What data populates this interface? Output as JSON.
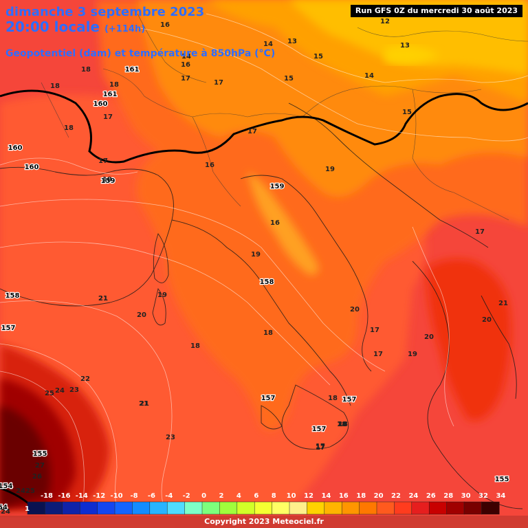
{
  "header": {
    "date": "dimanche 3 septembre 2023",
    "time": "20:00 locale",
    "offset": "(+114h)",
    "subtitle": "Geopotentiel (dam) et température à 850hPa (°C)",
    "run": "Run GFS 0Z du mercredi 30 août 2023"
  },
  "footer": {
    "copyright": "Copyright 2023 Meteociel.fr"
  },
  "colors": {
    "title": "#2E6DFF",
    "deep_red": "#5A0000",
    "orange": "#FF7F00",
    "yellow": "#FFC800"
  },
  "legend": {
    "values": [
      "-18",
      "-16",
      "-14",
      "-12",
      "-10",
      "-8",
      "-6",
      "-4",
      "-2",
      "0",
      "2",
      "4",
      "6",
      "8",
      "10",
      "12",
      "14",
      "16",
      "18",
      "20",
      "22",
      "24",
      "26",
      "28",
      "30",
      "32",
      "34"
    ],
    "colors": [
      "#0A1250",
      "#0C1C78",
      "#0F23A8",
      "#0F2DD0",
      "#1446F0",
      "#1464FF",
      "#148CFF",
      "#28B4FF",
      "#50DCFF",
      "#7DFFC8",
      "#7DFF7D",
      "#A0FF3C",
      "#D2FF28",
      "#F5FF32",
      "#FFFF64",
      "#FFF08C",
      "#FFD200",
      "#FFB400",
      "#FF9600",
      "#FF7800",
      "#FF5A1E",
      "#FF3C1E",
      "#E61E1E",
      "#C80000",
      "#A00000",
      "#780000",
      "#3C0000"
    ],
    "low_label": "1"
  },
  "geopotential_labels": [
    "161",
    "160",
    "161",
    "160",
    "160",
    "159",
    "159",
    "158",
    "158",
    "157",
    "157",
    "157",
    "157",
    "155",
    "154",
    "155",
    "54"
  ],
  "temperature_labels": [
    "16",
    "12",
    "14",
    "13",
    "13",
    "14",
    "15",
    "14",
    "15",
    "15",
    "16",
    "17",
    "17",
    "18",
    "18",
    "18",
    "17",
    "18",
    "17",
    "17",
    "19",
    "19",
    "20",
    "20",
    "19",
    "20",
    "18",
    "17",
    "16",
    "16",
    "18",
    "19",
    "21",
    "20",
    "18",
    "21",
    "21",
    "20",
    "17",
    "17",
    "17",
    "19",
    "22",
    "25",
    "24",
    "23",
    "18",
    "18",
    "17",
    "23",
    "21",
    "27",
    "26",
    "25",
    "24",
    "24",
    "21",
    "17"
  ]
}
